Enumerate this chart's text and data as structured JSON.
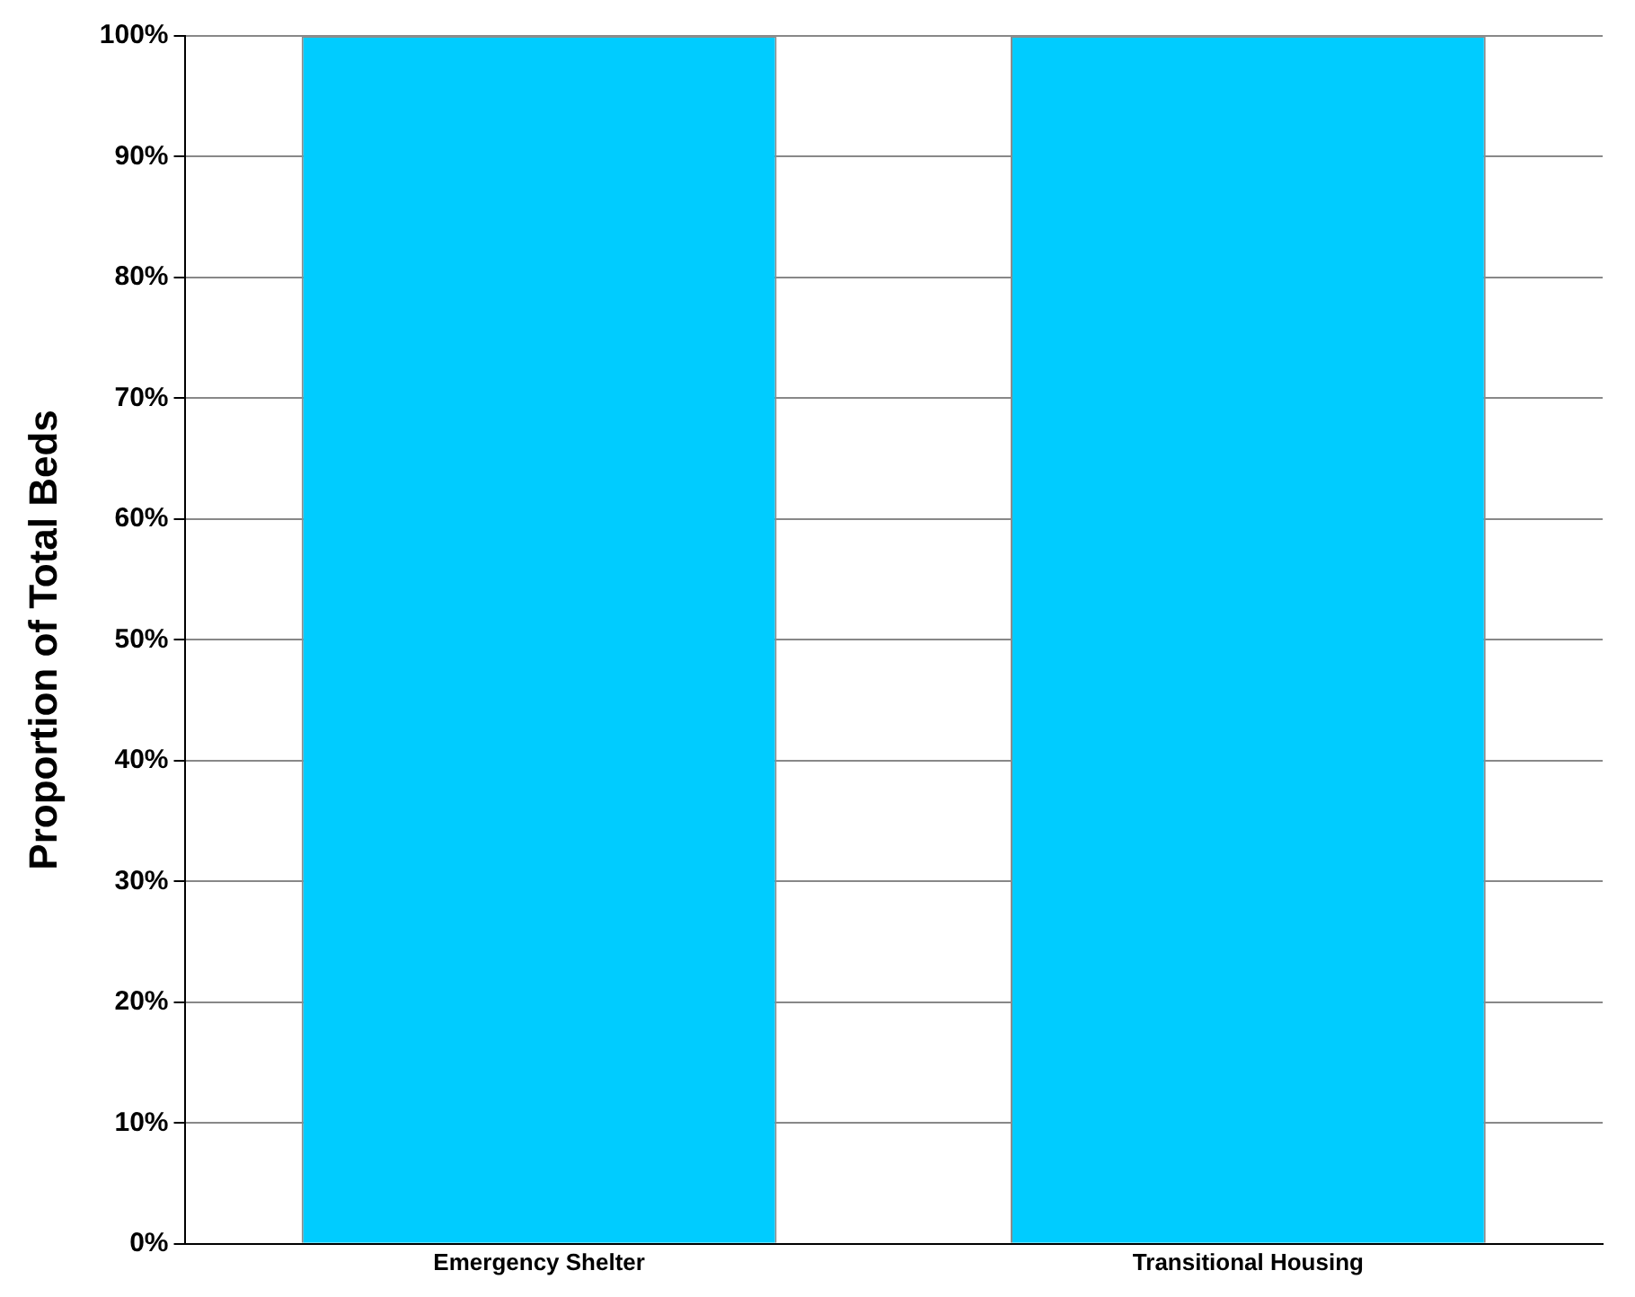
{
  "chart_data": {
    "type": "bar",
    "ylabel": "Proportion of Total Beds",
    "categories": [
      "Emergency Shelter",
      "Transitional Housing"
    ],
    "values": [
      100,
      100
    ],
    "color": "#00ccff",
    "ylim": [
      0,
      100
    ],
    "yticks": [
      {
        "value": 0,
        "label": "0%"
      },
      {
        "value": 10,
        "label": "10%"
      },
      {
        "value": 20,
        "label": "20%"
      },
      {
        "value": 30,
        "label": "30%"
      },
      {
        "value": 40,
        "label": "40%"
      },
      {
        "value": 50,
        "label": "50%"
      },
      {
        "value": 60,
        "label": "60%"
      },
      {
        "value": 70,
        "label": "70%"
      },
      {
        "value": 80,
        "label": "80%"
      },
      {
        "value": 90,
        "label": "90%"
      },
      {
        "value": 100,
        "label": "100%"
      }
    ],
    "grid": "y"
  }
}
